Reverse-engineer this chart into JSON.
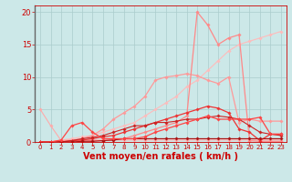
{
  "background_color": "#cce8e8",
  "grid_color": "#aacccc",
  "xlabel": "Vent moyen/en rafales ( km/h )",
  "xlim": [
    -0.5,
    23.5
  ],
  "ylim": [
    0,
    21
  ],
  "yticks": [
    0,
    5,
    10,
    15,
    20
  ],
  "xticks": [
    0,
    1,
    2,
    3,
    4,
    5,
    6,
    7,
    8,
    9,
    10,
    11,
    12,
    13,
    14,
    15,
    16,
    17,
    18,
    19,
    20,
    21,
    22,
    23
  ],
  "series": [
    {
      "x": [
        0,
        1,
        2,
        3,
        4,
        5,
        6,
        7,
        8,
        9,
        10,
        11,
        12,
        13,
        14,
        15,
        16,
        17,
        18,
        19,
        20,
        21,
        22,
        23
      ],
      "y": [
        5.0,
        2.5,
        0.2,
        0.1,
        0.2,
        0.3,
        0.3,
        0.3,
        0.3,
        0.3,
        0.3,
        0.3,
        0.3,
        0.3,
        0.3,
        0.3,
        0.3,
        0.3,
        0.3,
        0.3,
        0.3,
        0.3,
        0.3,
        0.3
      ],
      "color": "#ffaaaa",
      "lw": 0.8,
      "marker": "D",
      "ms": 1.8
    },
    {
      "x": [
        0,
        1,
        2,
        3,
        4,
        5,
        6,
        7,
        8,
        9,
        10,
        11,
        12,
        13,
        14,
        15,
        16,
        17,
        18,
        19,
        20,
        21,
        22,
        23
      ],
      "y": [
        0.0,
        0.0,
        0.3,
        0.5,
        0.8,
        1.0,
        1.5,
        2.0,
        2.5,
        3.0,
        4.0,
        5.0,
        6.0,
        7.0,
        8.5,
        9.5,
        11.0,
        12.5,
        14.0,
        15.0,
        15.5,
        16.0,
        16.5,
        17.0
      ],
      "color": "#ffbbbb",
      "lw": 0.8,
      "marker": "D",
      "ms": 1.8
    },
    {
      "x": [
        0,
        1,
        2,
        3,
        4,
        5,
        6,
        7,
        8,
        9,
        10,
        11,
        12,
        13,
        14,
        15,
        16,
        17,
        18,
        19,
        20,
        21,
        22,
        23
      ],
      "y": [
        0.0,
        0.0,
        0.2,
        0.3,
        0.5,
        1.0,
        2.0,
        3.5,
        4.5,
        5.5,
        7.0,
        9.5,
        10.0,
        10.2,
        10.5,
        10.2,
        9.5,
        9.0,
        10.0,
        3.0,
        3.5,
        3.2,
        3.2,
        3.2
      ],
      "color": "#ff9999",
      "lw": 0.9,
      "marker": "D",
      "ms": 1.8
    },
    {
      "x": [
        0,
        1,
        2,
        3,
        4,
        5,
        6,
        7,
        8,
        9,
        10,
        11,
        12,
        13,
        14,
        15,
        16,
        17,
        18,
        19,
        20,
        21,
        22,
        23
      ],
      "y": [
        0.0,
        0.0,
        0.0,
        0.2,
        0.3,
        0.2,
        0.2,
        0.3,
        0.5,
        1.0,
        1.5,
        2.0,
        2.5,
        3.0,
        4.0,
        20.0,
        18.0,
        15.0,
        16.0,
        16.5,
        0.2,
        0.1,
        0.1,
        0.1
      ],
      "color": "#ff8888",
      "lw": 0.9,
      "marker": "D",
      "ms": 1.8
    },
    {
      "x": [
        0,
        1,
        2,
        3,
        4,
        5,
        6,
        7,
        8,
        9,
        10,
        11,
        12,
        13,
        14,
        15,
        16,
        17,
        18,
        19,
        20,
        21,
        22,
        23
      ],
      "y": [
        0.0,
        0.0,
        0.0,
        0.2,
        0.3,
        0.5,
        0.8,
        1.0,
        1.5,
        2.0,
        2.5,
        3.0,
        3.5,
        4.0,
        4.5,
        5.0,
        5.5,
        5.2,
        4.5,
        2.0,
        1.5,
        0.2,
        1.2,
        1.2
      ],
      "color": "#ee3333",
      "lw": 0.9,
      "marker": "D",
      "ms": 1.8
    },
    {
      "x": [
        0,
        1,
        2,
        3,
        4,
        5,
        6,
        7,
        8,
        9,
        10,
        11,
        12,
        13,
        14,
        15,
        16,
        17,
        18,
        19,
        20,
        21,
        22,
        23
      ],
      "y": [
        0.0,
        0.0,
        0.0,
        0.2,
        0.5,
        0.7,
        1.0,
        1.5,
        2.0,
        2.5,
        2.5,
        3.0,
        3.0,
        3.2,
        3.5,
        3.5,
        3.8,
        4.0,
        3.8,
        3.5,
        2.5,
        1.5,
        1.2,
        1.0
      ],
      "color": "#cc2222",
      "lw": 0.8,
      "marker": "D",
      "ms": 1.8
    },
    {
      "x": [
        0,
        1,
        2,
        3,
        4,
        5,
        6,
        7,
        8,
        9,
        10,
        11,
        12,
        13,
        14,
        15,
        16,
        17,
        18,
        19,
        20,
        21,
        22,
        23
      ],
      "y": [
        0.0,
        0.0,
        0.0,
        0.0,
        0.1,
        0.1,
        0.2,
        0.3,
        0.5,
        0.5,
        0.5,
        0.5,
        0.5,
        0.5,
        0.5,
        0.5,
        0.5,
        0.5,
        0.5,
        0.5,
        0.5,
        0.5,
        0.5,
        0.5
      ],
      "color": "#aa1111",
      "lw": 0.8,
      "marker": "D",
      "ms": 1.8
    },
    {
      "x": [
        0,
        1,
        2,
        3,
        4,
        5,
        6,
        7,
        8,
        9,
        10,
        11,
        12,
        13,
        14,
        15,
        16,
        17,
        18,
        19,
        20,
        21,
        22,
        23
      ],
      "y": [
        0.0,
        0.0,
        0.3,
        2.5,
        3.0,
        1.5,
        0.5,
        0.5,
        0.5,
        0.5,
        0.8,
        1.5,
        2.0,
        2.5,
        3.0,
        3.5,
        4.0,
        3.5,
        3.5,
        3.5,
        3.5,
        3.8,
        1.2,
        1.2
      ],
      "color": "#ff4444",
      "lw": 0.9,
      "marker": "D",
      "ms": 1.8
    }
  ],
  "left_spine_color": "#666666",
  "axis_color": "#cc0000",
  "tick_color": "#cc0000",
  "xlabel_color": "#cc0000",
  "xlabel_fontsize": 7.0,
  "tick_fontsize": 5.0,
  "ytick_fontsize": 6.0
}
